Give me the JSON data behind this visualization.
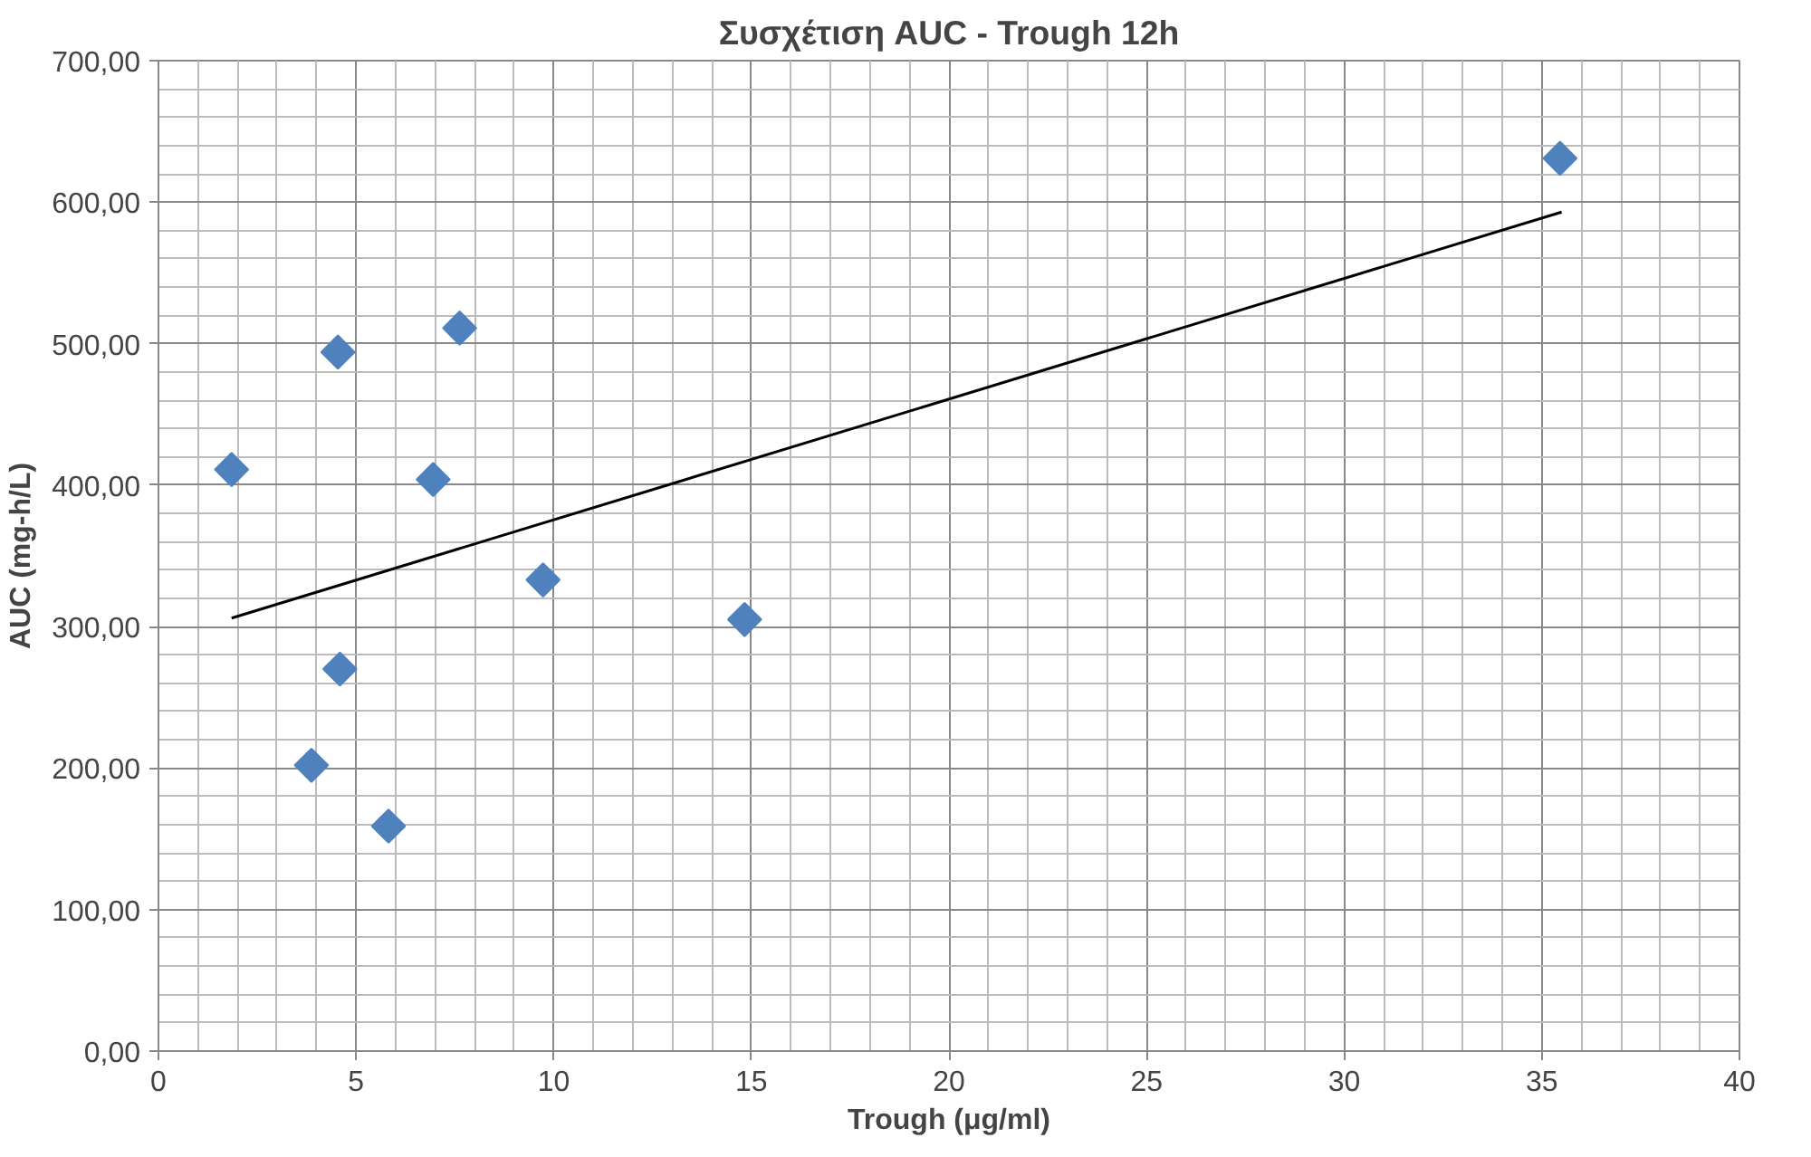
{
  "chart_data": {
    "type": "scatter",
    "title": "Συσχέτιση AUC - Trough 12h",
    "xlabel": "Trough (μg/ml)",
    "ylabel": "AUC (mg-h/L)",
    "xlim": [
      0,
      40
    ],
    "xticks": [
      0,
      5,
      10,
      15,
      20,
      25,
      30,
      35,
      40
    ],
    "ylim": [
      0,
      700
    ],
    "yticks": [
      {
        "value": 0,
        "label": "0,00"
      },
      {
        "value": 100,
        "label": "100,00"
      },
      {
        "value": 200,
        "label": "200,00"
      },
      {
        "value": 300,
        "label": "300,00"
      },
      {
        "value": 400,
        "label": "400,00"
      },
      {
        "value": 500,
        "label": "500,00"
      },
      {
        "value": 600,
        "label": "600,00"
      },
      {
        "value": 700,
        "label": "700,00"
      }
    ],
    "grid": true,
    "marker": "diamond",
    "series": [
      {
        "color": "#4f81bd",
        "x": [
          1.85,
          4.54,
          7.62,
          6.95,
          9.73,
          14.83,
          4.59,
          3.87,
          5.82,
          35.46
        ],
        "values": [
          411,
          494,
          511,
          404,
          333,
          305,
          270,
          202,
          159,
          631
        ]
      },
      {
        "type": "line",
        "marker": "none",
        "color": "#000000",
        "x": [
          1.85,
          35.5
        ],
        "values": [
          306,
          593
        ]
      }
    ]
  }
}
